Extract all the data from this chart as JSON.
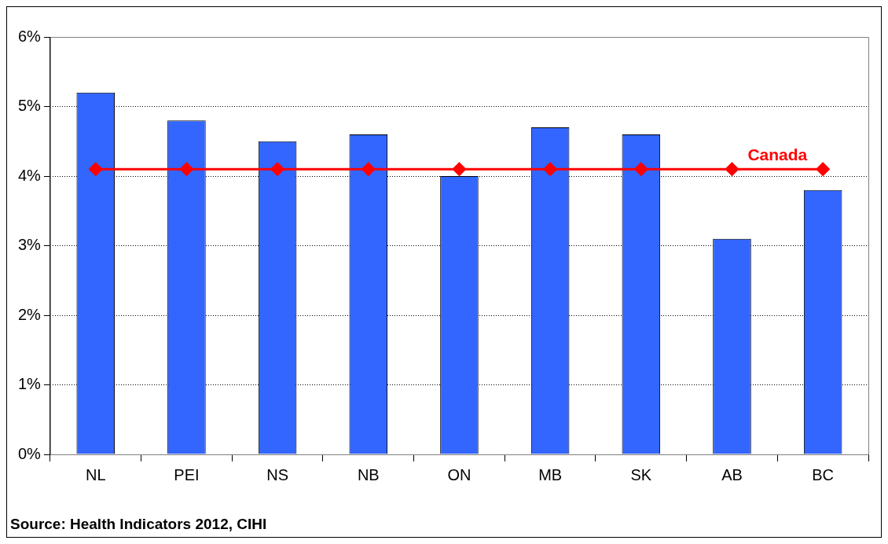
{
  "chart_data": {
    "type": "bar",
    "categories": [
      "NL",
      "PEI",
      "NS",
      "NB",
      "ON",
      "MB",
      "SK",
      "AB",
      "BC"
    ],
    "series": [
      {
        "color": "#3366ff",
        "values": [
          5.2,
          4.8,
          4.5,
          4.6,
          4.0,
          4.7,
          4.6,
          3.1,
          3.8
        ]
      },
      {
        "type": "line",
        "name": "Canada",
        "color": "#ff0000",
        "values": [
          4.1,
          4.1,
          4.1,
          4.1,
          4.1,
          4.1,
          4.1,
          4.1,
          4.1
        ]
      }
    ],
    "ylim": [
      0,
      6
    ],
    "yticks": [
      {
        "value": 0,
        "label": "0%"
      },
      {
        "value": 1,
        "label": "1%"
      },
      {
        "value": 2,
        "label": "2%"
      },
      {
        "value": 3,
        "label": "3%"
      },
      {
        "value": 4,
        "label": "4%"
      },
      {
        "value": 5,
        "label": "5%"
      },
      {
        "value": 6,
        "label": "6%"
      }
    ],
    "grid": "y",
    "legend": false,
    "marker": "diamond",
    "line_style": "solid",
    "annotations": [
      "Source: Health Indicators 2012, CIHI"
    ]
  }
}
